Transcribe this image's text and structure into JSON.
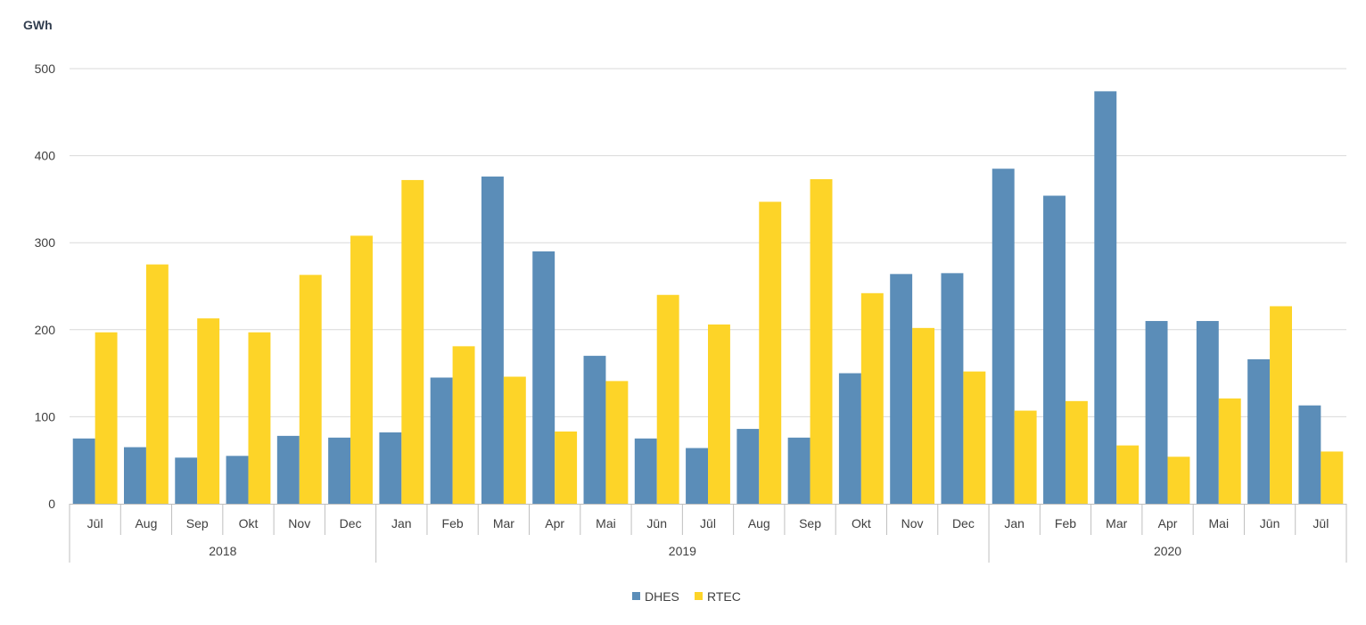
{
  "chart_data": {
    "type": "bar",
    "ylabel": "GWh",
    "ylim": [
      0,
      500
    ],
    "yticks": [
      0,
      100,
      200,
      300,
      400,
      500
    ],
    "grid": true,
    "legend_position": "bottom-center",
    "categories": [
      "Jūl",
      "Aug",
      "Sep",
      "Okt",
      "Nov",
      "Dec",
      "Jan",
      "Feb",
      "Mar",
      "Apr",
      "Mai",
      "Jūn",
      "Jūl",
      "Aug",
      "Sep",
      "Okt",
      "Nov",
      "Dec",
      "Jan",
      "Feb",
      "Mar",
      "Apr",
      "Mai",
      "Jūn",
      "Jūl"
    ],
    "year_groups": [
      {
        "label": "2018",
        "count": 6
      },
      {
        "label": "2019",
        "count": 12
      },
      {
        "label": "2020",
        "count": 7
      }
    ],
    "series": [
      {
        "name": "DHES",
        "color": "#5b8db8",
        "values": [
          75,
          65,
          53,
          55,
          78,
          76,
          82,
          145,
          376,
          290,
          170,
          75,
          64,
          86,
          76,
          150,
          264,
          265,
          385,
          354,
          474,
          210,
          210,
          166,
          113
        ]
      },
      {
        "name": "RTEC",
        "color": "#fdd428",
        "values": [
          197,
          275,
          213,
          197,
          263,
          308,
          372,
          181,
          146,
          83,
          141,
          240,
          206,
          347,
          373,
          242,
          202,
          152,
          107,
          118,
          67,
          54,
          121,
          227,
          60
        ]
      }
    ]
  }
}
